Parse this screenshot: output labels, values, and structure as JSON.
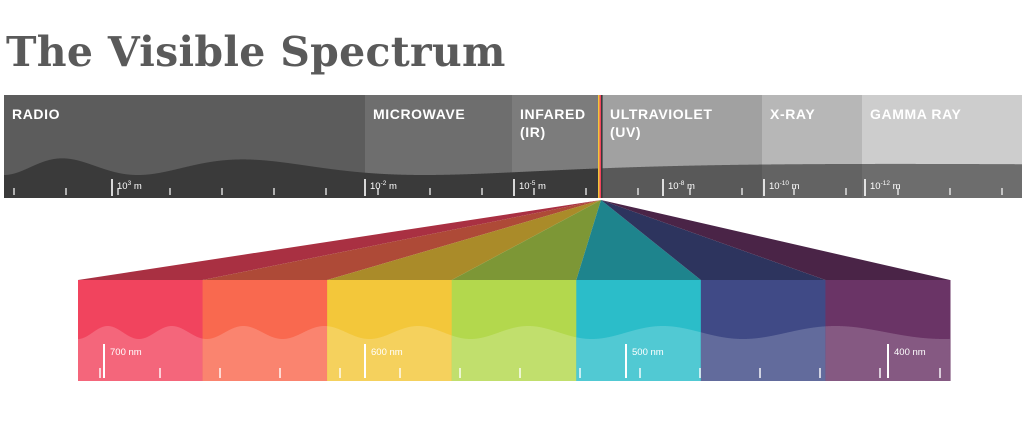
{
  "title": "The Visible Spectrum",
  "bands": [
    {
      "name": "RADIO",
      "color": "#5c5c5c"
    },
    {
      "name": "MICROWAVE",
      "color": "#6e6e6e"
    },
    {
      "name": "INFARED",
      "sub": "(IR)",
      "color": "#7c7c7c"
    },
    {
      "name": "ULTRAVIOLET",
      "sub": "(UV)",
      "color": "#8f8f8f"
    },
    {
      "name": "X-RAY",
      "color": "#a4a4a4"
    },
    {
      "name": "GAMMA RAY",
      "color": "#bcbcbc"
    }
  ],
  "scale_labels": [
    {
      "base": "10",
      "exp": "3",
      "unit": "m"
    },
    {
      "base": "10",
      "exp": "-2",
      "unit": "m"
    },
    {
      "base": "10",
      "exp": "-5",
      "unit": "m"
    },
    {
      "base": "10",
      "exp": "-8",
      "unit": "m"
    },
    {
      "base": "10",
      "exp": "-10",
      "unit": "m"
    },
    {
      "base": "10",
      "exp": "-12",
      "unit": "m"
    }
  ],
  "colors": [
    {
      "name": "red",
      "color": "#f1445e"
    },
    {
      "name": "orange",
      "color": "#f9694f"
    },
    {
      "name": "yellow",
      "color": "#f3c73a"
    },
    {
      "name": "green",
      "color": "#b3d84d"
    },
    {
      "name": "cyan",
      "color": "#2bbdc9"
    },
    {
      "name": "indigo",
      "color": "#404a86"
    },
    {
      "name": "violet",
      "color": "#6a3466"
    }
  ],
  "visible_labels": [
    "700 nm",
    "600 nm",
    "500 nm",
    "400 nm"
  ]
}
